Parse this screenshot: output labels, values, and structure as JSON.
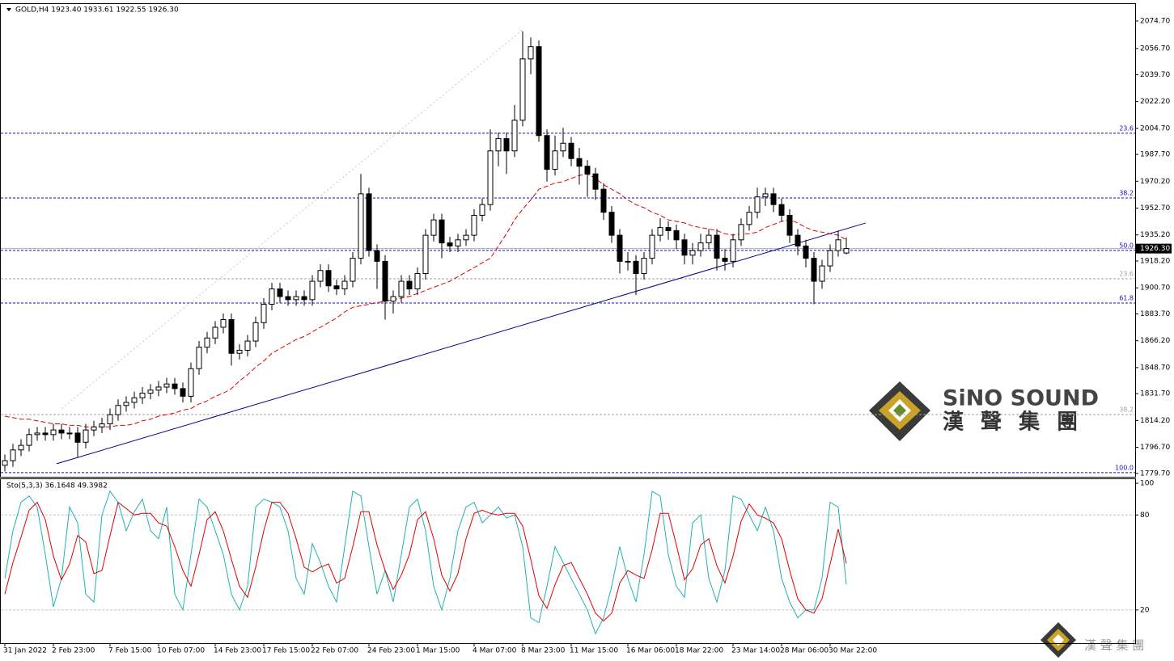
{
  "chart_data": [
    {
      "type": "candlestick",
      "title": "GOLD,H4  1923.40 1933.61 1922.55 1926.30",
      "categories": [
        "31 Jan 2022",
        null,
        null,
        null,
        null,
        null,
        "2 Feb 23:00",
        null,
        null,
        null,
        null,
        null,
        null,
        "7 Feb 15:00",
        null,
        null,
        null,
        null,
        null,
        "10 Feb 07:00",
        null,
        null,
        null,
        null,
        null,
        null,
        "14 Feb 23:00",
        null,
        null,
        null,
        null,
        null,
        "17 Feb 15:00",
        null,
        null,
        null,
        null,
        null,
        "22 Feb 07:00",
        null,
        null,
        null,
        null,
        null,
        null,
        "24 Feb 23:00",
        null,
        null,
        null,
        null,
        null,
        "1 Mar 15:00",
        null,
        null,
        null,
        null,
        null,
        null,
        "4 Mar 07:00",
        null,
        null,
        null,
        null,
        null,
        "8 Mar 23:00",
        null,
        null,
        null,
        null,
        null,
        "11 Mar 15:00",
        null,
        null,
        null,
        null,
        null,
        null,
        "16 Mar 06:00",
        null,
        null,
        null,
        null,
        null,
        "18 Mar 22:00",
        null,
        null,
        null,
        null,
        null,
        null,
        "23 Mar 14:00",
        null,
        null,
        null,
        null,
        null,
        "28 Mar 06:00",
        null,
        null,
        null,
        null,
        null,
        "30 Mar 22:00",
        null,
        null
      ],
      "open": [
        1785,
        1788,
        1795,
        1798,
        1805,
        1806,
        1805,
        1808,
        1806,
        1806,
        1800,
        1808,
        1810,
        1812,
        1818,
        1824,
        1826,
        1829,
        1832,
        1834,
        1836,
        1838,
        1835,
        1830,
        1848,
        1862,
        1868,
        1875,
        1880,
        1858,
        1860,
        1866,
        1878,
        1890,
        1900,
        1895,
        1893,
        1895,
        1893,
        1905,
        1912,
        1902,
        1900,
        1905,
        1920,
        1962,
        1925,
        1918,
        1892,
        1895,
        1905,
        1900,
        1910,
        1935,
        1945,
        1930,
        1928,
        1932,
        1935,
        1948,
        1955,
        1990,
        1998,
        1990,
        2010,
        2050,
        2058,
        2000,
        1978,
        1990,
        1995,
        1985,
        1980,
        1975,
        1965,
        1950,
        1935,
        1918,
        1918,
        1910,
        1920,
        1935,
        1940,
        1938,
        1932,
        1922,
        1925,
        1930,
        1935,
        1920,
        1918,
        1932,
        1942,
        1950,
        1960,
        1962,
        1955,
        1948,
        1935,
        1928,
        1920,
        1905,
        1915,
        1925,
        1923.4
      ],
      "high": [
        1792,
        1799,
        1802,
        1809,
        1810,
        1810,
        1812,
        1812,
        1810,
        1810,
        1812,
        1814,
        1816,
        1822,
        1828,
        1830,
        1833,
        1836,
        1838,
        1840,
        1842,
        1842,
        1839,
        1852,
        1866,
        1872,
        1879,
        1884,
        1884,
        1864,
        1870,
        1882,
        1894,
        1904,
        1904,
        1899,
        1899,
        1899,
        1909,
        1916,
        1916,
        1906,
        1909,
        1924,
        1975,
        1966,
        1929,
        1922,
        1899,
        1909,
        1909,
        1914,
        1939,
        1949,
        1949,
        1934,
        1936,
        1939,
        1952,
        1959,
        2004,
        2002,
        2002,
        2020,
        2068,
        2064,
        2062,
        2004,
        2000,
        2005,
        1999,
        1992,
        1984,
        1979,
        1969,
        1954,
        1939,
        1924,
        1922,
        1924,
        1939,
        1946,
        1944,
        1942,
        1936,
        1930,
        1936,
        1939,
        1939,
        1926,
        1936,
        1946,
        1954,
        1966,
        1966,
        1966,
        1959,
        1952,
        1939,
        1932,
        1924,
        1919,
        1929,
        1938,
        1933.61
      ],
      "low": [
        1781,
        1784,
        1791,
        1794,
        1801,
        1801,
        1801,
        1802,
        1802,
        1790,
        1796,
        1804,
        1806,
        1808,
        1814,
        1820,
        1822,
        1825,
        1828,
        1830,
        1832,
        1831,
        1826,
        1826,
        1844,
        1858,
        1864,
        1871,
        1850,
        1854,
        1856,
        1862,
        1874,
        1886,
        1891,
        1889,
        1889,
        1889,
        1889,
        1901,
        1898,
        1896,
        1896,
        1901,
        1916,
        1921,
        1900,
        1880,
        1884,
        1891,
        1896,
        1896,
        1906,
        1931,
        1920,
        1924,
        1924,
        1928,
        1931,
        1944,
        1951,
        1980,
        1975,
        1986,
        2006,
        2040,
        1996,
        1970,
        1974,
        1986,
        1980,
        1968,
        1960,
        1958,
        1945,
        1930,
        1910,
        1912,
        1896,
        1906,
        1916,
        1931,
        1932,
        1926,
        1916,
        1916,
        1921,
        1926,
        1912,
        1912,
        1914,
        1928,
        1938,
        1946,
        1954,
        1950,
        1944,
        1930,
        1922,
        1914,
        1890,
        1900,
        1911,
        1921,
        1922.55
      ],
      "close": [
        1788,
        1795,
        1798,
        1805,
        1806,
        1805,
        1808,
        1806,
        1806,
        1800,
        1808,
        1810,
        1812,
        1818,
        1824,
        1826,
        1829,
        1832,
        1834,
        1836,
        1838,
        1835,
        1830,
        1848,
        1862,
        1868,
        1875,
        1880,
        1858,
        1860,
        1866,
        1878,
        1890,
        1900,
        1895,
        1893,
        1895,
        1893,
        1905,
        1912,
        1902,
        1900,
        1905,
        1920,
        1962,
        1925,
        1918,
        1892,
        1895,
        1905,
        1900,
        1910,
        1935,
        1945,
        1930,
        1928,
        1932,
        1935,
        1948,
        1955,
        1990,
        1998,
        1990,
        2010,
        2050,
        2058,
        2000,
        1978,
        1990,
        1995,
        1985,
        1980,
        1975,
        1965,
        1950,
        1935,
        1918,
        1918,
        1910,
        1920,
        1935,
        1940,
        1938,
        1932,
        1922,
        1925,
        1930,
        1935,
        1920,
        1918,
        1932,
        1942,
        1950,
        1960,
        1962,
        1955,
        1948,
        1935,
        1928,
        1920,
        1905,
        1915,
        1925,
        1932,
        1926.3
      ],
      "color": "#000000",
      "ma": {
        "color": "#e00000",
        "values": [
          1817,
          1816,
          1815,
          1815,
          1814,
          1813,
          1812,
          1812,
          1811,
          1811,
          1810,
          1810,
          1810,
          1810,
          1811,
          1811,
          1812,
          1814,
          1815,
          1817,
          1818,
          1819,
          1821,
          1822,
          1825,
          1827,
          1830,
          1832,
          1835,
          1840,
          1844,
          1849,
          1853,
          1858,
          1861,
          1864,
          1867,
          1869,
          1872,
          1875,
          1878,
          1881,
          1885,
          1888,
          1889,
          1890,
          1891,
          1892,
          1893,
          1894,
          1895,
          1897,
          1899,
          1901,
          1903,
          1905,
          1908,
          1911,
          1914,
          1917,
          1920,
          1928,
          1936,
          1945,
          1952,
          1958,
          1965,
          1967,
          1969,
          1970,
          1972,
          1974,
          1975,
          1972,
          1968,
          1965,
          1962,
          1958,
          1955,
          1953,
          1950,
          1948,
          1945,
          1944,
          1943,
          1941,
          1940,
          1939,
          1938,
          1936,
          1935,
          1936,
          1936,
          1937,
          1940,
          1942,
          1944,
          1945,
          1943,
          1940,
          1938,
          1937,
          1936,
          1935,
          1932
        ]
      },
      "ylim": [
        1777.5,
        2086.3
      ],
      "yticks": [
        {
          "value": 2074.7,
          "label": "2074.70"
        },
        {
          "value": 2056.7,
          "label": "2056.70"
        },
        {
          "value": 2039.7,
          "label": "2039.70"
        },
        {
          "value": 2022.2,
          "label": "2022.20"
        },
        {
          "value": 2004.7,
          "label": "2004.70"
        },
        {
          "value": 1987.7,
          "label": "1987.70"
        },
        {
          "value": 1970.2,
          "label": "1970.20"
        },
        {
          "value": 1952.7,
          "label": "1952.70"
        },
        {
          "value": 1935.2,
          "label": "1935.20"
        },
        {
          "value": 1918.2,
          "label": "1918.20"
        },
        {
          "value": 1900.7,
          "label": "1900.70"
        },
        {
          "value": 1883.7,
          "label": "1883.70"
        },
        {
          "value": 1866.2,
          "label": "1866.20"
        },
        {
          "value": 1848.7,
          "label": "1848.70"
        },
        {
          "value": 1831.7,
          "label": "1831.70"
        },
        {
          "value": 1814.2,
          "label": "1814.20"
        },
        {
          "value": 1796.7,
          "label": "1796.70"
        },
        {
          "value": 1779.7,
          "label": "1779.70"
        }
      ],
      "last_price": {
        "value": 1926.3,
        "label": "1926.30"
      },
      "fib_levels": [
        {
          "value": 2001.5,
          "label": "23.6",
          "color": "#1010c0"
        },
        {
          "value": 1959.3,
          "label": "38.2",
          "color": "#1010c0"
        },
        {
          "value": 1925.1,
          "label": "50.0",
          "color": "#1010c0"
        },
        {
          "value": 1906.6,
          "label": "23.6",
          "color": "#a0a0a0"
        },
        {
          "value": 1890.8,
          "label": "61.8",
          "color": "#1010c0"
        },
        {
          "value": 1818.1,
          "label": "38.2",
          "color": "#a0a0a0"
        },
        {
          "value": 1780.2,
          "label": "100.0",
          "color": "#1010c0"
        }
      ],
      "trendline": {
        "start": 1786,
        "end": 1943,
        "color": "#00008b"
      },
      "fib_line": {
        "start": 1822,
        "end": 2069,
        "color": "#c8c8c8"
      }
    },
    {
      "type": "line",
      "title": "Sto(5,3,3) 36.1648 49.3982",
      "series": [
        {
          "color": "#20b2b2",
          "values": [
            40,
            70,
            88,
            92,
            85,
            55,
            22,
            40,
            85,
            75,
            30,
            25,
            80,
            95,
            88,
            70,
            82,
            90,
            70,
            65,
            85,
            30,
            20,
            55,
            90,
            85,
            70,
            55,
            30,
            20,
            35,
            85,
            90,
            88,
            85,
            70,
            40,
            30,
            62,
            50,
            35,
            25,
            60,
            95,
            92,
            60,
            30,
            45,
            25,
            55,
            85,
            90,
            70,
            35,
            20,
            40,
            70,
            85,
            88,
            75,
            80,
            85,
            78,
            80,
            60,
            15,
            12,
            35,
            60,
            50,
            40,
            30,
            20,
            5,
            15,
            35,
            60,
            40,
            25,
            55,
            95,
            92,
            55,
            35,
            28,
            75,
            80,
            40,
            25,
            45,
            92,
            90,
            80,
            70,
            85,
            70,
            40,
            25,
            15,
            20,
            20,
            40,
            88,
            85,
            36.1648
          ]
        },
        {
          "color": "#e00000",
          "values": [
            30,
            50,
            66,
            83,
            88,
            77,
            54,
            39,
            49,
            67,
            63,
            43,
            45,
            67,
            88,
            84,
            80,
            81,
            81,
            75,
            73,
            60,
            45,
            35,
            55,
            77,
            82,
            70,
            52,
            35,
            28,
            47,
            70,
            88,
            88,
            81,
            65,
            47,
            44,
            47,
            49,
            37,
            40,
            60,
            82,
            82,
            61,
            45,
            33,
            42,
            55,
            77,
            82,
            65,
            42,
            32,
            43,
            65,
            81,
            83,
            81,
            80,
            81,
            81,
            73,
            52,
            29,
            21,
            36,
            48,
            50,
            40,
            30,
            18,
            13,
            18,
            37,
            45,
            42,
            40,
            58,
            81,
            81,
            61,
            39,
            46,
            61,
            65,
            48,
            37,
            54,
            76,
            87,
            80,
            78,
            75,
            65,
            45,
            27,
            20,
            18,
            27,
            49,
            71,
            49.3982
          ]
        }
      ],
      "ylim": [
        -1,
        103.1
      ],
      "yticks": [
        20,
        80,
        100
      ],
      "levels": [
        20,
        80
      ]
    }
  ],
  "logo": {
    "name": "SiNO SOUND",
    "chinese": "漢 聲 集 團"
  },
  "footer_watermark": "漢 聲 集 團"
}
